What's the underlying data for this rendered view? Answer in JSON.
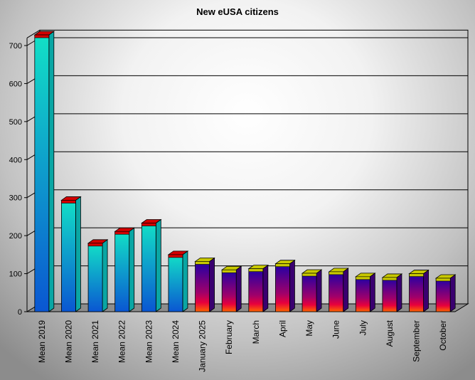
{
  "chart_data": {
    "type": "bar",
    "title": "New eUSA citizens",
    "xlabel": "",
    "ylabel": "",
    "ylim": [
      0,
      720
    ],
    "yticks": [
      0,
      100,
      200,
      300,
      400,
      500,
      600,
      700
    ],
    "grid": true,
    "legend": "none",
    "categories": [
      "Mean 2019",
      "Mean 2020",
      "Mean 2021",
      "Mean 2022",
      "Mean 2023",
      "Mean 2024",
      "January 2025",
      "February",
      "March",
      "April",
      "May",
      "June",
      "July",
      "August",
      "September",
      "October"
    ],
    "values": [
      728,
      293,
      180,
      211,
      233,
      150,
      132,
      110,
      113,
      126,
      101,
      105,
      92,
      90,
      100,
      88
    ],
    "colors": {
      "mean_front_top": "#12e0c6",
      "mean_front_bottom": "#0a56d2",
      "mean_side": "#0aa6a4",
      "mean_cap": "#d40000",
      "month_front_top": "#1d00a8",
      "month_front_mid": "#a0006a",
      "month_front_bottom": "#ff6400",
      "month_side": "#3a0070",
      "month_cap": "#c8c800",
      "floor": "#8c8c8c",
      "grid": "#000000"
    }
  }
}
